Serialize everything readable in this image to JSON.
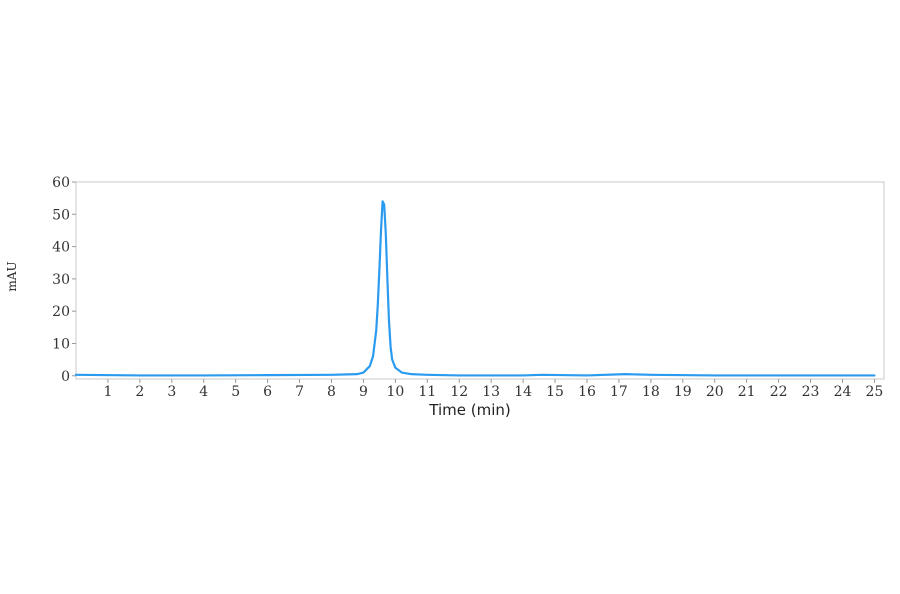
{
  "chart_data": {
    "type": "line",
    "title": "",
    "xlabel": "Time (min)",
    "ylabel": "mAU",
    "xlim": [
      0,
      25.3
    ],
    "ylim": [
      -1,
      60
    ],
    "x_ticks": [
      1,
      2,
      3,
      4,
      5,
      6,
      7,
      8,
      9,
      10,
      11,
      12,
      13,
      14,
      15,
      16,
      17,
      18,
      19,
      20,
      21,
      22,
      23,
      24,
      25
    ],
    "y_ticks": [
      0,
      10,
      20,
      30,
      40,
      50,
      60
    ],
    "grid": false,
    "legend": "none",
    "line_color": "#2b9bf0",
    "series": [
      {
        "x": [
          0,
          2,
          4,
          6,
          8,
          8.8,
          9.0,
          9.2,
          9.3,
          9.4,
          9.45,
          9.5,
          9.55,
          9.6,
          9.65,
          9.7,
          9.75,
          9.8,
          9.85,
          9.9,
          10.0,
          10.2,
          10.5,
          11,
          12,
          14,
          14.6,
          16,
          17.2,
          18,
          20,
          22,
          24,
          25
        ],
        "y": [
          0.3,
          0.1,
          0.1,
          0.2,
          0.3,
          0.5,
          1.0,
          3.0,
          6.0,
          14.0,
          22.0,
          33.0,
          45.0,
          54.0,
          53.0,
          44.0,
          30.0,
          17.0,
          9.0,
          5.0,
          2.5,
          1.0,
          0.5,
          0.3,
          0.1,
          0.1,
          0.3,
          0.1,
          0.5,
          0.3,
          0.1,
          0.1,
          0.1,
          0.1
        ]
      }
    ]
  }
}
